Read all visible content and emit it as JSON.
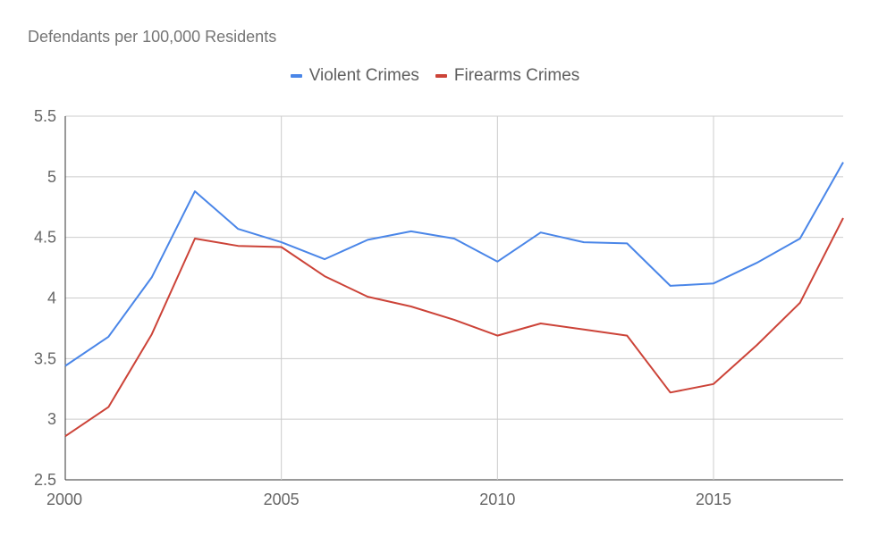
{
  "chart_data": {
    "type": "line",
    "title": "Defendants per 100,000 Residents",
    "xlabel": "",
    "ylabel": "",
    "x": [
      2000,
      2001,
      2002,
      2003,
      2004,
      2005,
      2006,
      2007,
      2008,
      2009,
      2010,
      2011,
      2012,
      2013,
      2014,
      2015,
      2016,
      2017,
      2018
    ],
    "xlim": [
      2000,
      2018
    ],
    "ylim": [
      2.5,
      5.5
    ],
    "x_ticks": [
      "2000",
      "2005",
      "2010",
      "2015"
    ],
    "y_ticks": [
      "2.5",
      "3",
      "3.5",
      "4",
      "4.5",
      "5",
      "5.5"
    ],
    "grid": true,
    "legend_position": "top-center",
    "series": [
      {
        "name": "Violent Crimes",
        "color": "#4a86e8",
        "values": [
          3.44,
          3.68,
          4.17,
          4.88,
          4.57,
          4.46,
          4.32,
          4.48,
          4.55,
          4.49,
          4.3,
          4.54,
          4.46,
          4.45,
          4.1,
          4.12,
          4.29,
          4.49,
          5.12
        ]
      },
      {
        "name": "Firearms Crimes",
        "color": "#cc4338",
        "values": [
          2.86,
          3.1,
          3.7,
          4.49,
          4.43,
          4.42,
          4.18,
          4.01,
          3.93,
          3.82,
          3.69,
          3.79,
          3.74,
          3.69,
          3.22,
          3.29,
          3.61,
          3.96,
          4.66
        ]
      }
    ]
  }
}
